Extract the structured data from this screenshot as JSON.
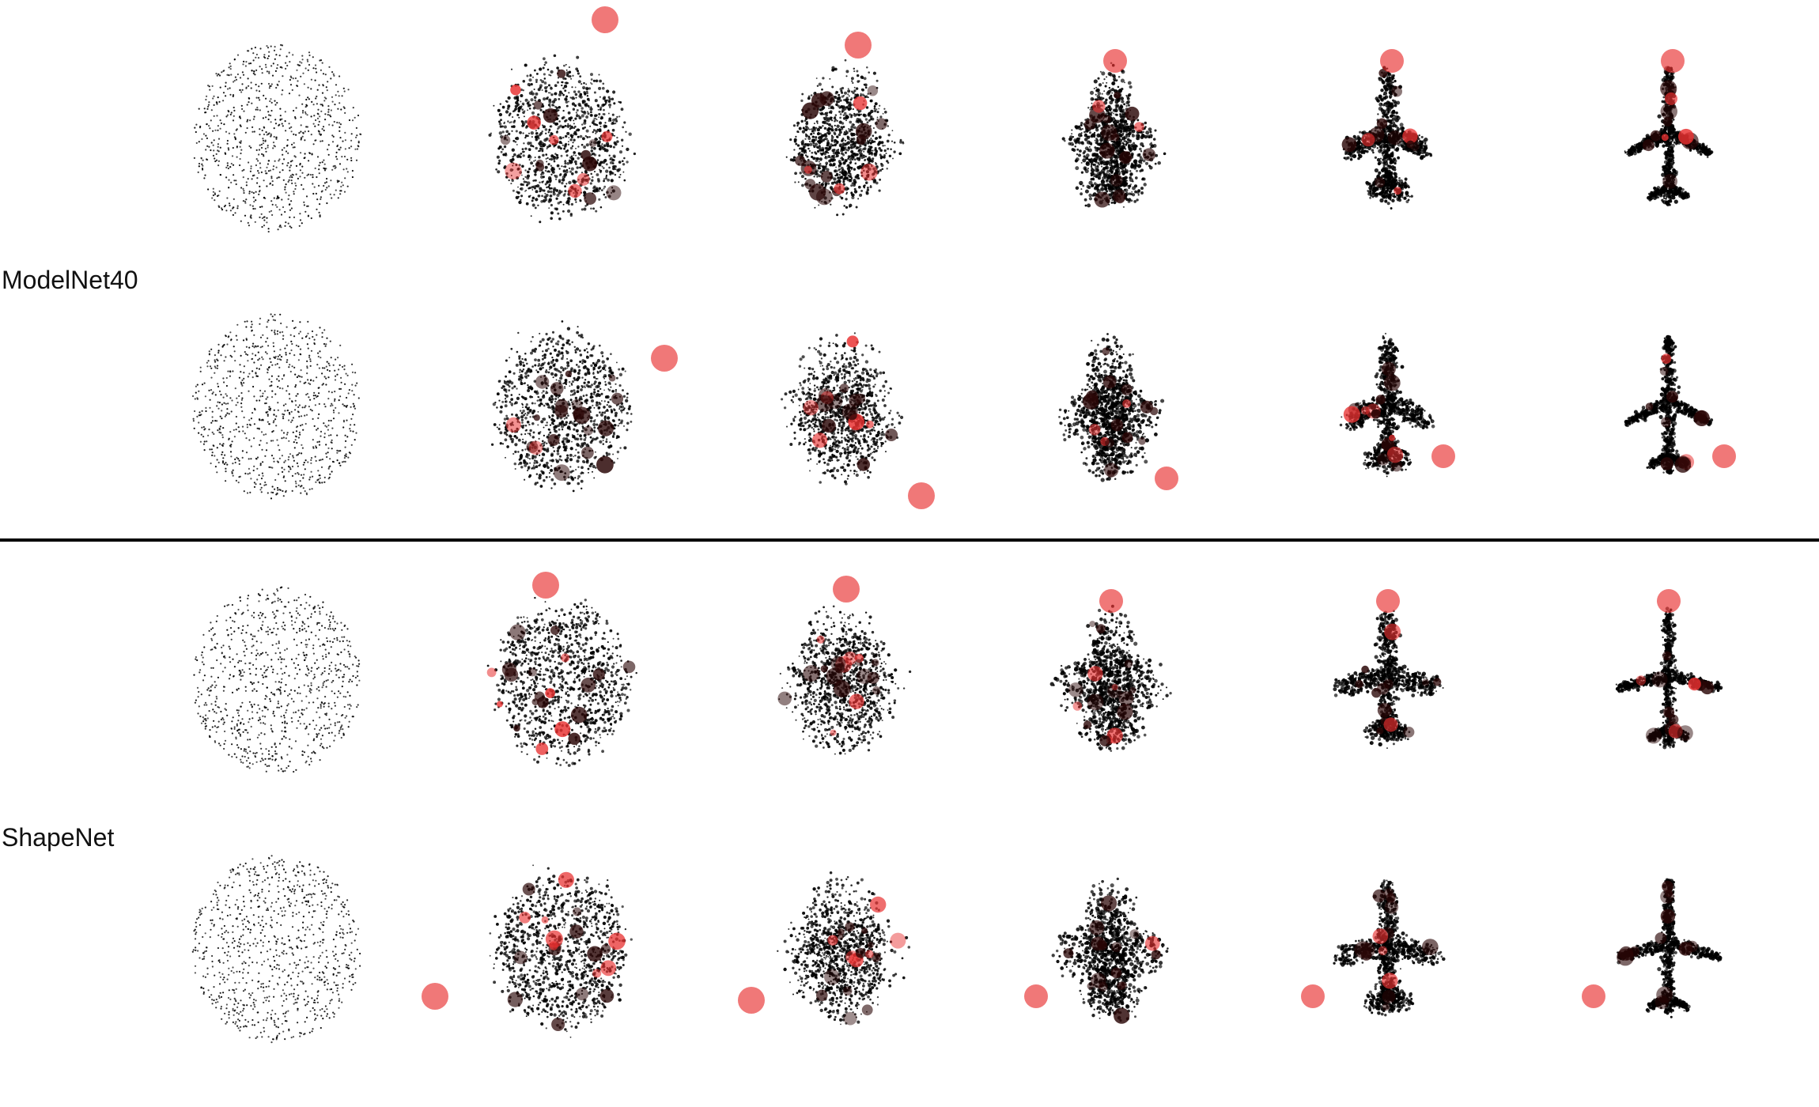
{
  "groups": [
    {
      "label": "ModelNet40",
      "rows": 2
    },
    {
      "label": "ShapeNet",
      "rows": 2
    }
  ],
  "steps": 6,
  "point_color": "#000000",
  "highlight_colors": {
    "strong": "#e83030",
    "dark": "#2a0606"
  }
}
